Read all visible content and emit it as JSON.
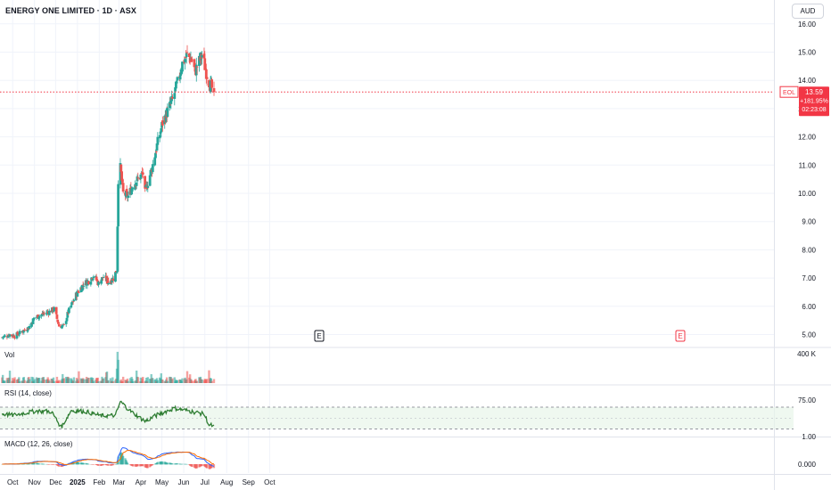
{
  "header": {
    "title": "ENERGY ONE LIMITED · 1D · ASX",
    "currency": "AUD"
  },
  "price_tag": {
    "symbol": "EOL",
    "price": "13.59",
    "change": "+181.95%",
    "countdown": "02:23:08"
  },
  "markers": {
    "earnings_label": "E"
  },
  "panes": {
    "volume_label": "Vol",
    "rsi_label": "RSI (14, close)",
    "macd_label": "MACD (12, 26, close)"
  },
  "colors": {
    "up": "#26a69a",
    "down": "#ef5350",
    "rsi_line": "#2e7d32",
    "macd_line": "#2962ff",
    "signal_line": "#ff6d00",
    "price_line": "#f23645"
  },
  "chart_data": [
    {
      "type": "candlestick",
      "title": "ENERGY ONE LIMITED · 1D · ASX",
      "x_ticks": [
        "Oct",
        "Nov",
        "Dec",
        "2025",
        "Feb",
        "Mar",
        "Apr",
        "May",
        "Jun",
        "Jul",
        "Aug",
        "Sep",
        "Oct"
      ],
      "y_ticks": [
        "5.00",
        "6.00",
        "7.00",
        "8.00",
        "9.00",
        "10.00",
        "11.00",
        "12.00",
        "13.00",
        "14.00",
        "15.00",
        "16.00"
      ],
      "ylim": [
        4.6,
        16.1
      ],
      "last_price": 13.59,
      "grid": true,
      "close_path": [
        [
          "2024-09-16",
          4.9
        ],
        [
          "2024-09-27",
          5.0
        ],
        [
          "2024-10-04",
          4.95
        ],
        [
          "2024-10-14",
          5.1
        ],
        [
          "2024-10-24",
          5.25
        ],
        [
          "2024-11-01",
          5.6
        ],
        [
          "2024-11-11",
          5.7
        ],
        [
          "2024-11-21",
          5.8
        ],
        [
          "2024-11-29",
          5.9
        ],
        [
          "2024-12-06",
          5.3
        ],
        [
          "2024-12-13",
          5.3
        ],
        [
          "2024-12-19",
          5.8
        ],
        [
          "2024-12-30",
          6.4
        ],
        [
          "2025-01-10",
          6.8
        ],
        [
          "2025-01-17",
          6.9
        ],
        [
          "2025-01-24",
          7.1
        ],
        [
          "2025-01-31",
          6.8
        ],
        [
          "2025-02-07",
          7.05
        ],
        [
          "2025-02-14",
          6.85
        ],
        [
          "2025-02-21",
          7.0
        ],
        [
          "2025-02-26",
          7.3
        ],
        [
          "2025-02-27",
          8.9
        ],
        [
          "2025-02-28",
          10.5
        ],
        [
          "2025-03-03",
          10.9
        ],
        [
          "2025-03-07",
          10.0
        ],
        [
          "2025-03-14",
          9.9
        ],
        [
          "2025-03-21",
          10.3
        ],
        [
          "2025-03-28",
          10.5
        ],
        [
          "2025-04-04",
          10.7
        ],
        [
          "2025-04-07",
          10.0
        ],
        [
          "2025-04-11",
          10.4
        ],
        [
          "2025-04-17",
          10.9
        ],
        [
          "2025-04-24",
          11.7
        ],
        [
          "2025-05-02",
          12.5
        ],
        [
          "2025-05-09",
          12.9
        ],
        [
          "2025-05-16",
          13.3
        ],
        [
          "2025-05-23",
          13.9
        ],
        [
          "2025-05-30",
          14.6
        ],
        [
          "2025-06-06",
          14.9
        ],
        [
          "2025-06-13",
          14.7
        ],
        [
          "2025-06-17",
          14.3
        ],
        [
          "2025-06-20",
          14.5
        ],
        [
          "2025-06-27",
          14.9
        ],
        [
          "2025-07-04",
          14.2
        ],
        [
          "2025-07-09",
          13.8
        ],
        [
          "2025-07-14",
          13.59
        ]
      ]
    },
    {
      "type": "bar",
      "title": "Vol",
      "y_ticks": [
        "400 K"
      ],
      "series": [
        {
          "name": "Volume"
        }
      ]
    },
    {
      "type": "line",
      "title": "RSI (14, close)",
      "y_ticks": [
        "75.00",
        "1.00"
      ],
      "band": [
        30,
        70
      ],
      "x": [
        "2024-09-16",
        "2024-10-01",
        "2024-10-21",
        "2024-11-04",
        "2024-11-25",
        "2024-12-09",
        "2024-12-23",
        "2025-01-13",
        "2025-02-03",
        "2025-02-24",
        "2025-03-03",
        "2025-03-17",
        "2025-04-07",
        "2025-04-28",
        "2025-05-19",
        "2025-06-09",
        "2025-06-30",
        "2025-07-07",
        "2025-07-14"
      ],
      "values": [
        58,
        55,
        60,
        63,
        62,
        33,
        64,
        62,
        54,
        55,
        80,
        63,
        44,
        58,
        68,
        63,
        57,
        38,
        35
      ]
    },
    {
      "type": "line",
      "title": "MACD (12, 26, close)",
      "y_ticks": [
        "1.000",
        "0.000"
      ],
      "series": [
        {
          "name": "MACD"
        },
        {
          "name": "Signal"
        }
      ]
    }
  ]
}
